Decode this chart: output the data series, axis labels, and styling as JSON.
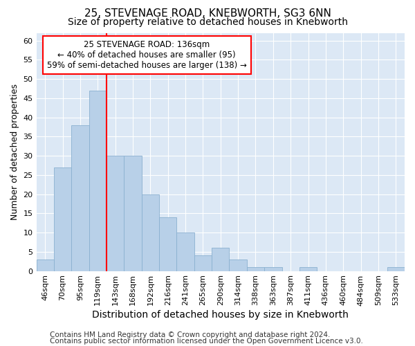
{
  "title": "25, STEVENAGE ROAD, KNEBWORTH, SG3 6NN",
  "subtitle": "Size of property relative to detached houses in Knebworth",
  "xlabel": "Distribution of detached houses by size in Knebworth",
  "ylabel": "Number of detached properties",
  "bar_labels": [
    "46sqm",
    "70sqm",
    "95sqm",
    "119sqm",
    "143sqm",
    "168sqm",
    "192sqm",
    "216sqm",
    "241sqm",
    "265sqm",
    "290sqm",
    "314sqm",
    "338sqm",
    "363sqm",
    "387sqm",
    "411sqm",
    "436sqm",
    "460sqm",
    "484sqm",
    "509sqm",
    "533sqm"
  ],
  "bar_values": [
    3,
    27,
    38,
    47,
    30,
    30,
    20,
    14,
    10,
    4,
    6,
    3,
    1,
    1,
    0,
    1,
    0,
    0,
    0,
    0,
    1
  ],
  "bar_color": "#b8d0e8",
  "bar_edge_color": "#8ab0d0",
  "red_line_x": 4.0,
  "annotation_line1": "25 STEVENAGE ROAD: 136sqm",
  "annotation_line2": "← 40% of detached houses are smaller (95)",
  "annotation_line3": "59% of semi-detached houses are larger (138) →",
  "ylim": [
    0,
    62
  ],
  "yticks": [
    0,
    5,
    10,
    15,
    20,
    25,
    30,
    35,
    40,
    45,
    50,
    55,
    60
  ],
  "footer1": "Contains HM Land Registry data © Crown copyright and database right 2024.",
  "footer2": "Contains public sector information licensed under the Open Government Licence v3.0.",
  "bg_color": "#dce8f5",
  "fig_bg_color": "#ffffff",
  "grid_color": "#ffffff",
  "title_fontsize": 11,
  "subtitle_fontsize": 10,
  "ylabel_fontsize": 9,
  "xlabel_fontsize": 10,
  "tick_fontsize": 8,
  "annot_fontsize": 8.5,
  "footer_fontsize": 7.5
}
